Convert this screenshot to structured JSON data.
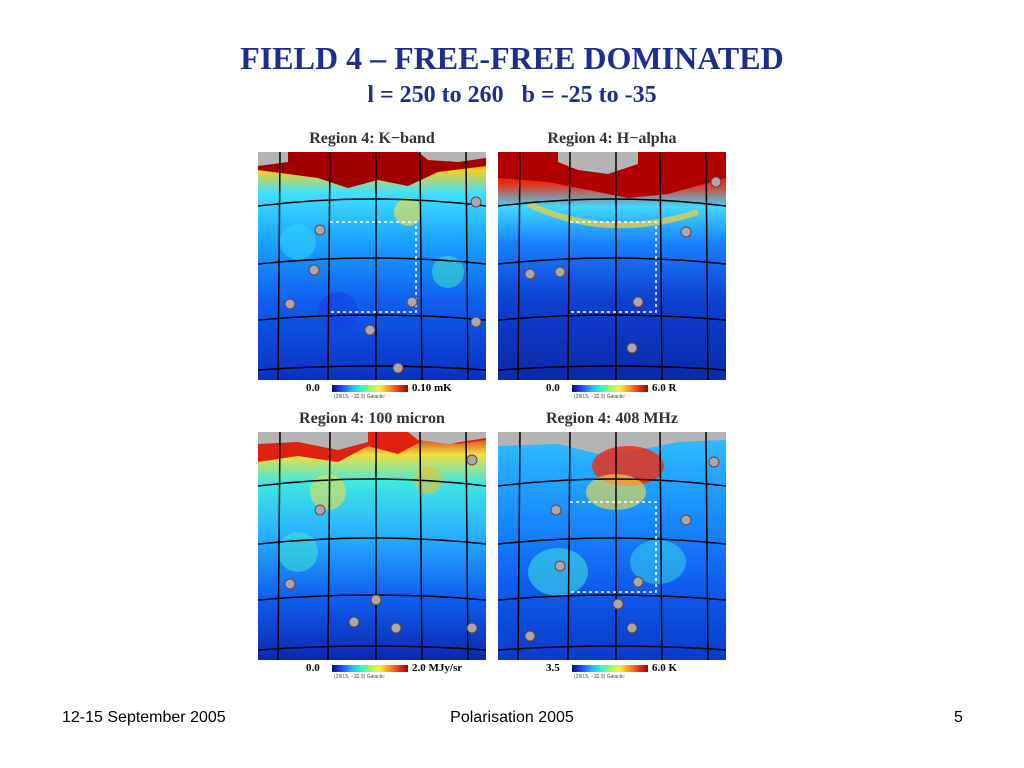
{
  "slide": {
    "title": "FIELD 4 – FREE-FREE DOMINATED",
    "subtitle": "l = 250 to 260   b = -25 to -35"
  },
  "panels": [
    {
      "title": "Region 4: K−band",
      "cb_min": "0.0",
      "cb_max": "0.10 mK",
      "cb_caption": "(260.5, −32.5) Galactic",
      "colormap": "jet"
    },
    {
      "title": "Region 4: H−alpha",
      "cb_min": "0.0",
      "cb_max": "6.0 R",
      "cb_caption": "(260.5, −32.5) Galactic",
      "colormap": "jet"
    },
    {
      "title": "Region 4: 100 micron",
      "cb_min": "0.0",
      "cb_max": "2.0 MJy/sr",
      "cb_caption": "(260.5, −32.5) Galactic",
      "colormap": "jet"
    },
    {
      "title": "Region 4: 408 MHz",
      "cb_min": "3.5",
      "cb_max": "6.0 K",
      "cb_caption": "(260.5, −32.5) Galactic",
      "colormap": "jet"
    }
  ],
  "footer": {
    "left": "12-15 September 2005",
    "center": "Polarisation 2005",
    "right": "5"
  },
  "colors": {
    "title": "#1f2d8f",
    "masked": "#b4b4b4",
    "colormap_low": "#0b0b8a",
    "colormap_high": "#a00000"
  }
}
